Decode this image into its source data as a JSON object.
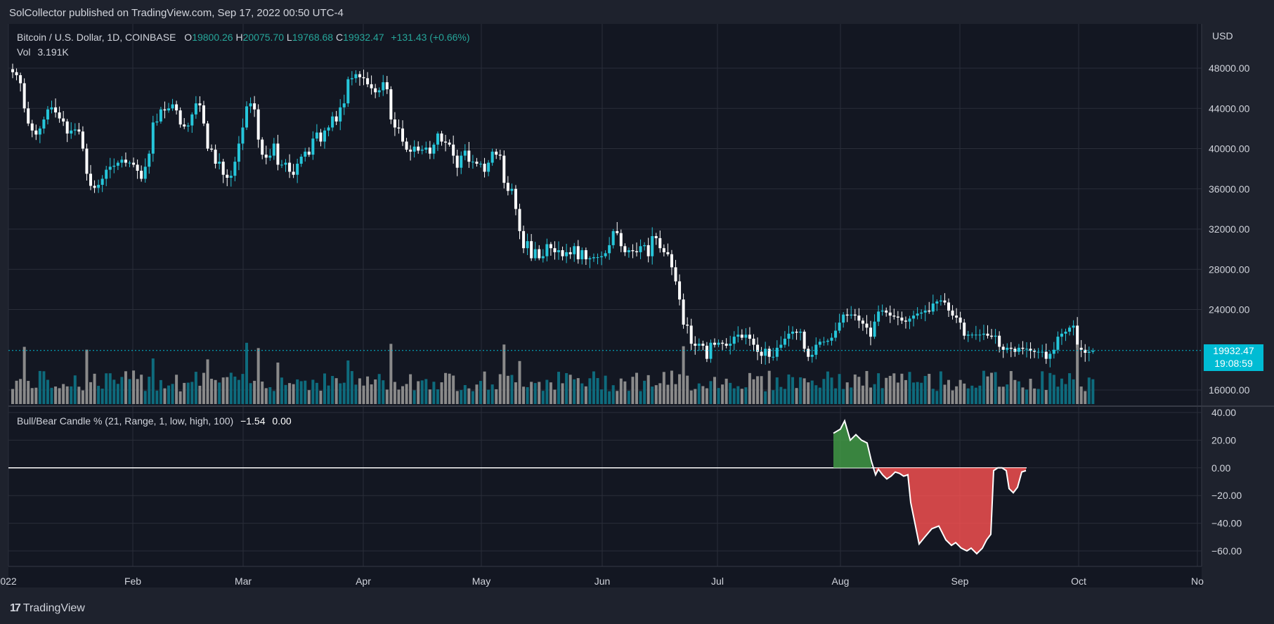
{
  "header": {
    "published": "SolCollector published on TradingView.com, Sep 17, 2022 00:50 UTC-4"
  },
  "legend": {
    "symbol": "Bitcoin / U.S. Dollar, 1D, COINBASE",
    "o_label": "O",
    "o_value": "19800.26",
    "h_label": "H",
    "h_value": "20075.70",
    "l_label": "L",
    "l_value": "19768.68",
    "c_label": "C",
    "c_value": "19932.47",
    "change": "+131.43 (+0.66%)",
    "vol_label": "Vol",
    "vol_value": "3.191K"
  },
  "indicator": {
    "name": "Bull/Bear Candle % (21, Range, 1, low, high, 100)",
    "value1": "−1.54",
    "value2": "0.00"
  },
  "price_axis": {
    "currency": "USD",
    "ticks": [
      "48000.00",
      "44000.00",
      "40000.00",
      "36000.00",
      "32000.00",
      "28000.00",
      "24000.00",
      "16000.00"
    ],
    "last_price": "19932.47",
    "countdown": "19:08:59"
  },
  "indicator_axis": {
    "ticks": [
      "40.00",
      "20.00",
      "0.00",
      "−20.00",
      "−40.00",
      "−60.00"
    ]
  },
  "time_axis": {
    "labels": [
      "022",
      "Feb",
      "Mar",
      "Apr",
      "May",
      "Jun",
      "Jul",
      "Aug",
      "Sep",
      "Oct",
      "No"
    ]
  },
  "footer": {
    "brand": "TradingView",
    "logo": "17"
  },
  "colors": {
    "bull": "#26c6da",
    "bear": "#ffffff",
    "vol_bull": "#0e6b7d",
    "vol_bear": "#8a8a8a",
    "ind_pos": "#43a047",
    "ind_neg": "#ff5252",
    "accent": "#00bcd4"
  },
  "chart_data": {
    "type": "candlestick",
    "title": "Bitcoin / U.S. Dollar, 1D, COINBASE",
    "ylim": [
      16000,
      48000
    ],
    "close": [
      47600,
      47300,
      46500,
      44000,
      42500,
      41800,
      41400,
      42000,
      42900,
      43900,
      44100,
      43600,
      43000,
      42700,
      41500,
      41800,
      41900,
      41700,
      40000,
      37500,
      36300,
      36100,
      36400,
      37000,
      37900,
      38200,
      38300,
      38600,
      38900,
      38600,
      38600,
      38400,
      37800,
      37000,
      38200,
      39500,
      42600,
      42700,
      43900,
      43800,
      44000,
      44400,
      43800,
      42400,
      42200,
      42300,
      43400,
      44500,
      44300,
      42500,
      40000,
      39900,
      38500,
      38700,
      37400,
      37100,
      37300,
      38700,
      40500,
      42100,
      44200,
      44500,
      43900,
      40900,
      39400,
      39100,
      39300,
      40500,
      38400,
      38400,
      38600,
      37700,
      37400,
      38500,
      39200,
      39700,
      39400,
      41000,
      41600,
      40700,
      41800,
      42100,
      43200,
      42700,
      44100,
      44500,
      46900,
      47000,
      47400,
      47100,
      47000,
      46400,
      46000,
      45600,
      45800,
      46600,
      45900,
      42900,
      42100,
      42000,
      40700,
      39900,
      39700,
      40200,
      39800,
      39900,
      40100,
      39500,
      40400,
      41500,
      40700,
      40600,
      40400,
      39300,
      38100,
      39300,
      39800,
      38700,
      38700,
      38500,
      38500,
      37700,
      38600,
      39700,
      39400,
      39300,
      36600,
      35800,
      36000,
      34000,
      31800,
      30100,
      30800,
      29100,
      30000,
      29100,
      29300,
      30500,
      30100,
      29700,
      29900,
      29300,
      29700,
      29500,
      30300,
      29000,
      29900,
      29000,
      29100,
      29200,
      29200,
      29300,
      29600,
      30400,
      31800,
      31600,
      30300,
      29700,
      29900,
      29800,
      29700,
      30300,
      30400,
      29300,
      31300,
      31100,
      30100,
      29700,
      29500,
      28200,
      26800,
      25000,
      22500,
      22400,
      20600,
      20400,
      20600,
      20400,
      19100,
      20700,
      20500,
      20700,
      20600,
      20400,
      20600,
      21300,
      21500,
      21200,
      21500,
      21100,
      20500,
      19800,
      19400,
      20100,
      19300,
      19300,
      20200,
      20500,
      21100,
      21600,
      21800,
      21700,
      21800,
      20100,
      19300,
      19500,
      20500,
      20800,
      20800,
      20900,
      21200,
      21900,
      22700,
      23500,
      23400,
      23500,
      23400,
      22900,
      22600,
      22200,
      21300,
      22800,
      23800,
      23900,
      23700,
      23400,
      23300,
      23200,
      22900,
      22800,
      23100,
      23400,
      23600,
      23700,
      23900,
      23800,
      24600,
      24800,
      24900,
      24700,
      23900,
      23400,
      23200,
      22700,
      21400,
      21500,
      21500,
      21500,
      21500,
      21600,
      21400,
      21300,
      21400,
      20300,
      20000,
      20200,
      20100,
      19800,
      20200,
      20100,
      20100,
      19900,
      19800,
      19800,
      19800,
      19100,
      19600,
      20000,
      21300,
      21600,
      21800,
      22200,
      22400,
      20200,
      20000,
      19700,
      19800,
      19900
    ]
  }
}
